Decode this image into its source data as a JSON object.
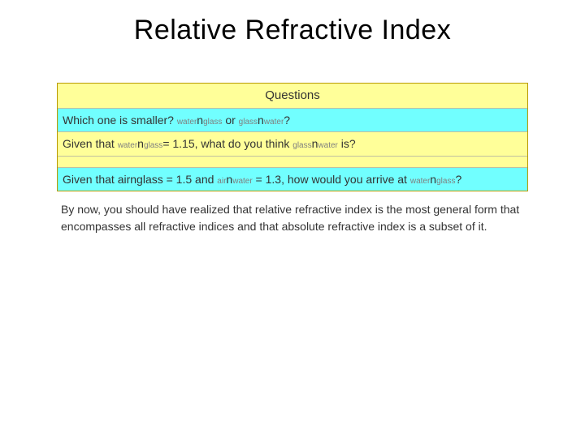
{
  "title": "Relative Refractive Index",
  "colors": {
    "yellow": "#ffff99",
    "cyan": "#71ffff",
    "border": "#b89a00",
    "text": "#333333",
    "sub": "#808080"
  },
  "questions_header": "Questions",
  "q1": {
    "prefix": "Which one is smaller? ",
    "sub1a": "water",
    "n1": "n",
    "sub1b": "glass",
    "mid": " or ",
    "sub2a": "glass",
    "n2": "n",
    "sub2b": "water",
    "suffix": "?"
  },
  "q2": {
    "prefix": "Given that ",
    "sub1a": "water",
    "n1": "n",
    "sub1b": "glass",
    "mid": "= 1.15, what do you think ",
    "sub2a": "glass",
    "n2": "n",
    "sub2b": "water",
    "suffix": " is?"
  },
  "q3": {
    "prefix": "Given that airnglass = 1.5 and ",
    "sub1a": "air",
    "n1": "n",
    "sub1b": "water",
    "mid": " = 1.3, how would you arrive at ",
    "sub2a": "water",
    "n2": "n",
    "sub2b": "glass",
    "suffix": "?"
  },
  "body": "By now, you should have realized that relative refractive index is the most general form that encompasses all refractive indices and that absolute refractive index is a subset of it."
}
